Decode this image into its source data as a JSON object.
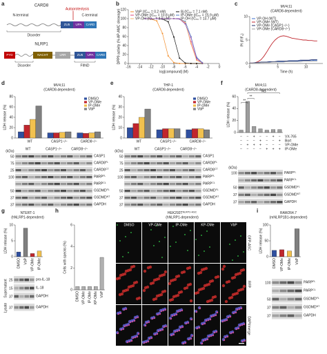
{
  "panel_labels": [
    "a",
    "b",
    "c",
    "d",
    "e",
    "f",
    "g",
    "h",
    "i"
  ],
  "diagram": {
    "card8": {
      "name": "CARD8",
      "n_terminal": "N-terminal",
      "autoproteolysis": "Autoproteolysis",
      "c_terminal": "C-terminal",
      "domains": [
        "ZU5",
        "UPA",
        "CARD"
      ],
      "disorder": "Disorder"
    },
    "nlrp1": {
      "name": "NLRP1",
      "domains": [
        "PYD",
        "NACHT",
        "LRR",
        "ZU5",
        "UPA",
        "CARD"
      ],
      "disorder": "Disorder",
      "fiind": "FIIND"
    }
  },
  "chart_data": [
    {
      "type": "line",
      "xlabel": "log[compound] (M)",
      "ylabel": "DPP9 activity (% AP-AMC cleavage)",
      "markers": true,
      "legend": "upper left",
      "x": [
        -13,
        -12,
        -11,
        -10,
        -9,
        -8,
        -7,
        -6,
        -5,
        -4,
        -3
      ],
      "series": [
        {
          "name": "VbP (IC₅₀ = 0.2 nM)",
          "color": "#f28c28",
          "values": [
            100,
            99,
            95,
            67,
            17,
            2,
            0,
            0,
            0,
            0,
            0
          ]
        },
        {
          "name": "8j (IC₅₀ = 7.1 nM)",
          "color": "#111111",
          "values": [
            100,
            100,
            100,
            99,
            93,
            59,
            12,
            1,
            0,
            0,
            0
          ]
        },
        {
          "name": "VP-OMe (IC₅₀ = 10.8 μM)",
          "color": "#e0457b",
          "values": [
            100,
            100,
            100,
            100,
            100,
            100,
            99,
            90,
            48,
            9,
            1
          ]
        },
        {
          "name": "IP-OMe (IC₅₀ = 15.9 μM)",
          "color": "#4a78c2",
          "values": [
            100,
            100,
            100,
            100,
            100,
            100,
            99,
            94,
            60,
            14,
            2
          ]
        },
        {
          "name": "VP-OH (IC₅₀ = 8.0 μM)",
          "color": "#f5b971",
          "values": [
            100,
            100,
            100,
            100,
            100,
            100,
            99,
            92,
            44,
            7,
            1
          ]
        },
        {
          "name": "IP-OH (IC₅₀ = 13.7 μM)",
          "color": "#8e5fb5",
          "values": [
            100,
            100,
            100,
            100,
            100,
            100,
            99,
            88,
            58,
            12,
            1
          ]
        }
      ],
      "xlim": [
        -16,
        0
      ],
      "xticks": [
        -16,
        -14,
        -12,
        -10,
        -8,
        -6,
        -4,
        -2,
        0
      ],
      "ylim": [
        0,
        120
      ],
      "yticks": [
        0,
        20,
        40,
        60,
        80,
        100,
        120
      ]
    },
    {
      "type": "line",
      "title": "MV4;11",
      "subtitle": "(CARD8-dependent)",
      "xlabel": "Time (h)",
      "ylabel": "PI (F/F₀)",
      "markers": false,
      "legend": "upper left",
      "x": [
        0,
        0.5,
        1,
        1.5,
        2,
        2.5,
        3,
        3.5,
        4,
        4.5,
        5,
        5.5,
        6,
        6.5,
        7,
        7.5,
        8,
        8.5,
        9,
        9.5,
        10,
        10.5,
        11,
        11.5,
        12
      ],
      "series": [
        {
          "name": "VP-OH (WT)",
          "color": "#3b6fd1",
          "values": [
            0.1,
            0.1,
            0.1,
            0.2,
            0.2,
            0.2,
            0.3,
            0.3,
            0.3,
            0.4,
            0.4,
            0.4,
            0.4,
            0.5,
            0.5,
            0.5,
            0.5,
            0.5,
            0.6,
            0.6,
            0.6,
            0.6,
            0.6,
            0.7,
            0.7
          ]
        },
        {
          "name": "VP-OMe (WT)",
          "color": "#c0262d",
          "values": [
            0.1,
            0.1,
            0.2,
            0.4,
            0.8,
            1.5,
            2.4,
            3.4,
            4.3,
            5.0,
            5.5,
            5.8,
            5.9,
            5.8,
            5.6,
            5.4,
            5.3,
            5.2,
            5.1,
            5.0,
            5.0,
            4.9,
            4.9,
            4.8,
            4.8
          ]
        },
        {
          "name": "VP-OMe (CASP1−/−)",
          "color": "#1f2f6b",
          "values": [
            0.1,
            0.1,
            0.2,
            0.2,
            0.3,
            0.3,
            0.3,
            0.4,
            0.4,
            0.4,
            0.5,
            0.5,
            0.5,
            0.5,
            0.6,
            0.6,
            0.6,
            0.6,
            0.7,
            0.7,
            0.7,
            0.7,
            0.8,
            0.8,
            0.8
          ]
        },
        {
          "name": "VP-OMe (CARD8−/−)",
          "color": "#9e9e9e",
          "values": [
            0.1,
            0.1,
            0.1,
            0.1,
            0.2,
            0.2,
            0.2,
            0.2,
            0.3,
            0.3,
            0.3,
            0.3,
            0.3,
            0.4,
            0.4,
            0.4,
            0.4,
            0.4,
            0.4,
            0.5,
            0.5,
            0.5,
            0.5,
            0.5,
            0.5
          ]
        }
      ],
      "xlim": [
        0,
        13
      ],
      "xticks": [
        0,
        5,
        10
      ],
      "ylim": [
        0,
        10
      ],
      "yticks": [
        0,
        5,
        10
      ]
    },
    {
      "type": "bar",
      "title": "MV4;11",
      "subtitle": "(CARD8-dependent)",
      "ylabel": "LDH release (%)",
      "legend": "upper right",
      "categories": [
        "WT",
        "CASP1−/−",
        "CARD8−/−"
      ],
      "series": [
        {
          "name": "DMSO",
          "color": "#2f4f9f",
          "values": [
            12,
            10,
            10
          ]
        },
        {
          "name": "VP-OMe",
          "color": "#c0262d",
          "values": [
            25,
            10,
            9
          ]
        },
        {
          "name": "IP-OMe",
          "color": "#f2c14e",
          "values": [
            36,
            11,
            10
          ]
        },
        {
          "name": "VbP",
          "color": "#7f7f7f",
          "values": [
            62,
            12,
            12
          ]
        }
      ],
      "ylim": [
        0,
        80
      ],
      "yticks": [
        0,
        20,
        40,
        60,
        80
      ]
    },
    {
      "type": "bar",
      "title": "THP-1",
      "subtitle": "(CARD8-dependent)",
      "ylabel": "LDH release (%)",
      "legend": "upper right",
      "categories": [
        "WT",
        "CASP1−/−",
        "CARD8−/−"
      ],
      "series": [
        {
          "name": "DMSO",
          "color": "#2f4f9f",
          "values": [
            10,
            8,
            8
          ]
        },
        {
          "name": "VP-OMe",
          "color": "#c0262d",
          "values": [
            14,
            9,
            9
          ]
        },
        {
          "name": "IP-OMe",
          "color": "#f2c14e",
          "values": [
            20,
            9,
            9
          ]
        },
        {
          "name": "VbP",
          "color": "#7f7f7f",
          "values": [
            28,
            9,
            8
          ]
        }
      ],
      "ylim": [
        0,
        40
      ],
      "yticks": [
        0,
        10,
        20,
        30,
        40
      ]
    },
    {
      "type": "bar",
      "title": "MV4;11",
      "subtitle": "(CARD8-dependent)",
      "ylabel": "LDH release (%)",
      "categories": [
        null,
        null,
        null,
        null,
        null,
        null,
        null
      ],
      "values": [
        4,
        52,
        10,
        6,
        4,
        5,
        5
      ],
      "color": "#9e9e9e",
      "annotations": [
        "**",
        "**",
        "NS"
      ],
      "treatments": [
        {
          "name": "VX-765",
          "signs": [
            "−",
            "−",
            "+",
            "−",
            "−",
            "+",
            "−"
          ]
        },
        {
          "name": "Bort",
          "signs": [
            "−",
            "−",
            "−",
            "+",
            "−",
            "−",
            "+"
          ]
        },
        {
          "name": "VP-OMe",
          "signs": [
            "−",
            "+",
            "+",
            "+",
            "−",
            "−",
            "−"
          ]
        },
        {
          "name": "IP-OMe",
          "signs": [
            "−",
            "−",
            "−",
            "−",
            "+",
            "+",
            "+"
          ]
        }
      ],
      "ylim": [
        0,
        60
      ],
      "yticks": [
        0,
        20,
        40,
        60
      ]
    },
    {
      "type": "bar",
      "title": "NTERT-1",
      "subtitle": "(hNLRP1-dependent)",
      "ylabel": "LDH release (%)",
      "categories": [
        "DMSO",
        "VbP",
        "VP-OMe",
        "IP-OMe"
      ],
      "values": [
        1.5,
        9,
        1,
        1.8
      ],
      "colors": [
        "#2f4f9f",
        "#7f7f7f",
        "#c0262d",
        "#f2c14e"
      ],
      "ylim": [
        0,
        10
      ],
      "yticks": [
        0,
        5,
        10
      ]
    },
    {
      "type": "bar",
      "title": "HEK293T",
      "title_sup": "NLRP1+ASC",
      "subtitle": "(hNLRP1-dependent)",
      "ylabel": "Cells with specks (%)",
      "categories": [
        "DMSO",
        "VP-OMe",
        "IP-OMe",
        "KP-OMe",
        "VbP"
      ],
      "values": [
        0.3,
        0.3,
        0.3,
        0.3,
        3
      ],
      "color": "#b0b0b0",
      "ylim": [
        0,
        6
      ],
      "yticks": [
        0,
        2,
        4,
        6
      ]
    },
    {
      "type": "bar",
      "title": "RAW264.7",
      "subtitle": "(mNLRP1B1-dependent)",
      "ylabel": "LDH release (%)",
      "categories": [
        "DMSO",
        "VP-OMe",
        "IP-OMe",
        "VbP"
      ],
      "values": [
        20,
        22,
        18,
        88
      ],
      "colors": [
        "#2f4f9f",
        "#c0262d",
        "#f2c14e",
        "#7f7f7f"
      ],
      "ylim": [
        0,
        100
      ],
      "yticks": [
        0,
        50,
        100
      ]
    }
  ],
  "blots": {
    "d": {
      "kda_header": "(kDa)",
      "rows": [
        {
          "kda": 50,
          "name": "CASP1"
        },
        {
          "kda": 75,
          "name": "CARD8",
          "sup": "FL"
        },
        {
          "kda": 25,
          "name": "CARD8",
          "sup": "CT"
        },
        {
          "kda": 100,
          "name": "PARP",
          "sup": "FL"
        },
        {
          "name": "PARP",
          "sup": "CL"
        },
        {
          "kda": 50,
          "name": "GSDMD",
          "sup": "FL"
        },
        {
          "kda": 37,
          "name": "GSDMD",
          "sup": "NT"
        },
        {
          "kda": 37,
          "name": "GAPDH"
        }
      ]
    },
    "e": {
      "kda_header": "(kDa)",
      "rows": [
        {
          "kda": 50,
          "name": "CASP1"
        },
        {
          "kda": 75,
          "name": "CARD8",
          "sup": "FL"
        },
        {
          "kda": 25,
          "name": "CARD8",
          "sup": "CT"
        },
        {
          "kda": 100,
          "name": "PARP",
          "sup": "FL"
        },
        {
          "name": "PARP",
          "sup": "CL"
        },
        {
          "kda": 50,
          "name": "GSDMD",
          "sup": "FL"
        },
        {
          "kda": 37,
          "name": "GSDMD",
          "sup": "NT"
        },
        {
          "kda": 37,
          "name": "GAPDH"
        }
      ]
    },
    "f": {
      "kda_header": "(kDa)",
      "rows": [
        {
          "kda": 100,
          "name": "PARP",
          "sup": "FL"
        },
        {
          "name": "PARP",
          "sup": "CL"
        },
        {
          "kda": 50,
          "name": "GSDMD",
          "sup": "FL"
        },
        {
          "kda": 37,
          "name": "GSDMD",
          "sup": "NT"
        },
        {
          "kda": 37,
          "name": "GAPDH"
        }
      ]
    },
    "g": {
      "sections": [
        {
          "name": "Supernatant",
          "rows": [
            {
              "kda": 25,
              "name": "pro-IL-18"
            },
            {
              "kda": 15,
              "name": "IL-18"
            },
            {
              "kda": 37,
              "name": "GAPDH"
            }
          ]
        },
        {
          "name": "Lysate",
          "rows": [
            {
              "kda": 37,
              "name": "GAPDH"
            }
          ]
        }
      ]
    },
    "i": {
      "rows": [
        {
          "kda": 100,
          "name": "PARP",
          "sup": "FL"
        },
        {
          "name": "PARP",
          "sup": "CL"
        },
        {
          "kda": 50,
          "name": "GSDMD",
          "sup": "FL"
        },
        {
          "kda": 37,
          "name": "GSDMD",
          "sup": "NT"
        },
        {
          "kda": 37,
          "name": "GAPDH"
        }
      ]
    }
  },
  "images": {
    "columns": [
      "DMSO",
      "VP-OMe",
      "IP-OMe",
      "KP-OMe",
      "VbP"
    ],
    "rows": [
      "GFP-ASC",
      "RFP",
      "DAPI/merge"
    ]
  }
}
